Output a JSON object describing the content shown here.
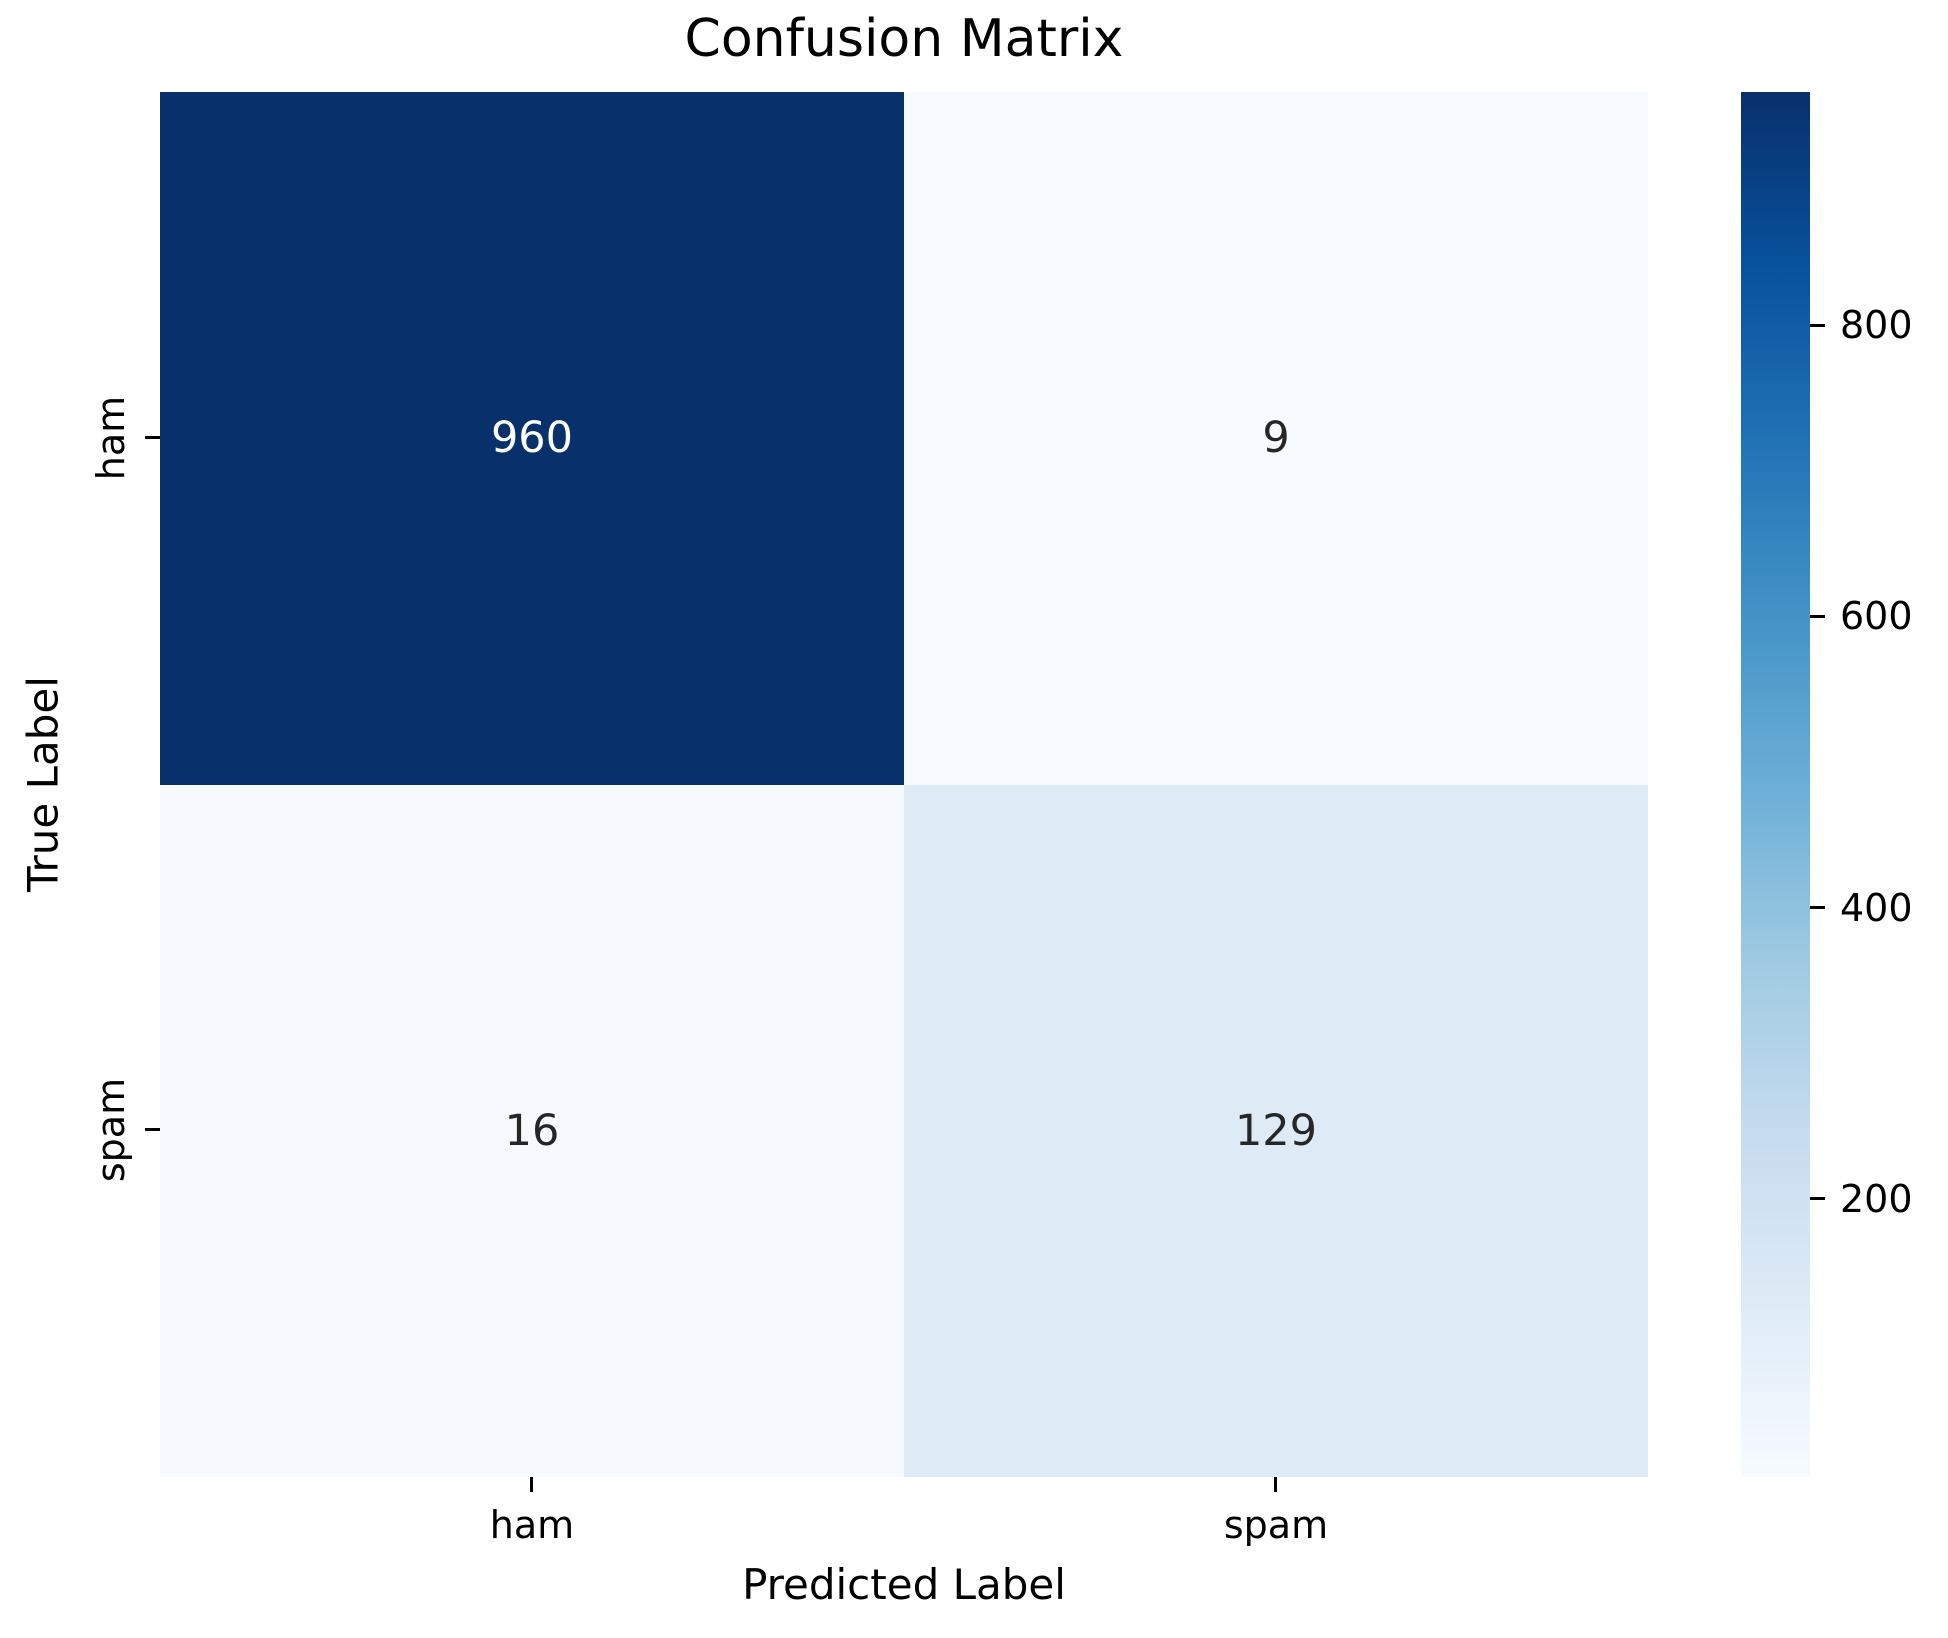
{
  "chart_data": {
    "type": "heatmap",
    "title": "Confusion Matrix",
    "xlabel": "Predicted Label",
    "ylabel": "True Label",
    "x_categories": [
      "ham",
      "spam"
    ],
    "y_categories": [
      "ham",
      "spam"
    ],
    "values": [
      [
        960,
        9
      ],
      [
        16,
        129
      ]
    ],
    "vmin": 9,
    "vmax": 960,
    "colormap": "Blues",
    "grid": false,
    "legend_position": "none",
    "cell_colors": [
      [
        "#08306b",
        "#f7fbff"
      ],
      [
        "#f6fafe",
        "#deebf7"
      ]
    ],
    "cell_text_colors": [
      [
        "#ffffff",
        "#262626"
      ],
      [
        "#262626",
        "#262626"
      ]
    ],
    "colorbar": {
      "position": "right",
      "ticks": [
        800,
        600,
        400,
        200
      ],
      "gradient_top_to_bottom": [
        "#08306b",
        "#08519c",
        "#2171b5",
        "#4292c6",
        "#6baed6",
        "#9ecae1",
        "#c6dbef",
        "#deebf7",
        "#f7fbff"
      ]
    }
  }
}
